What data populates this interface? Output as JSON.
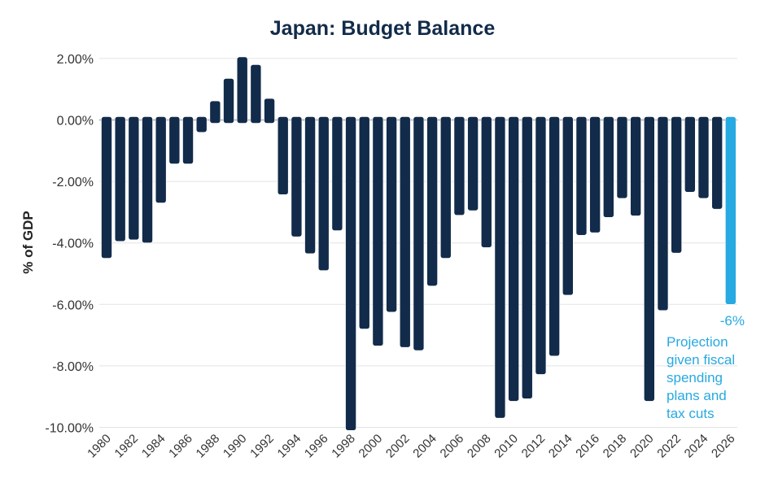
{
  "chart_data": {
    "type": "bar",
    "title": "Japan: Budget Balance",
    "ylabel": "% of GDP",
    "xlabel": "",
    "ylim": [
      -10,
      2
    ],
    "yticks": [
      2,
      0,
      -2,
      -4,
      -6,
      -8,
      -10
    ],
    "ytick_labels": [
      "2.00%",
      "0.00%",
      "-2.00%",
      "-4.00%",
      "-6.00%",
      "-8.00%",
      "-10.00%"
    ],
    "grid": true,
    "categories": [
      1980,
      1981,
      1982,
      1983,
      1984,
      1985,
      1986,
      1987,
      1988,
      1989,
      1990,
      1991,
      1992,
      1993,
      1994,
      1995,
      1996,
      1997,
      1998,
      1999,
      2000,
      2001,
      2002,
      2003,
      2004,
      2005,
      2006,
      2007,
      2008,
      2009,
      2010,
      2011,
      2012,
      2013,
      2014,
      2015,
      2016,
      2017,
      2018,
      2019,
      2020,
      2021,
      2022,
      2023,
      2024,
      2025,
      2026
    ],
    "xtick_labels": [
      "1980",
      "1982",
      "1984",
      "1986",
      "1988",
      "1990",
      "1992",
      "1994",
      "1996",
      "1998",
      "2000",
      "2002",
      "2004",
      "2006",
      "2008",
      "2010",
      "2012",
      "2014",
      "2016",
      "2018",
      "2020",
      "2022",
      "2024",
      "2026"
    ],
    "values": [
      -4.5,
      -3.95,
      -3.9,
      -4.0,
      -2.7,
      -1.43,
      -1.43,
      -0.4,
      0.62,
      1.35,
      2.05,
      1.8,
      0.7,
      -2.43,
      -3.8,
      -4.35,
      -4.9,
      -3.6,
      -10.1,
      -6.8,
      -7.35,
      -6.25,
      -7.4,
      -7.5,
      -5.4,
      -4.5,
      -3.1,
      -2.95,
      -4.15,
      -9.7,
      -9.15,
      -9.07,
      -8.28,
      -7.68,
      -5.7,
      -3.75,
      -3.67,
      -3.17,
      -2.55,
      -3.12,
      -9.15,
      -6.2,
      -4.33,
      -2.35,
      -2.55,
      -2.9,
      -6.0
    ],
    "projection_index": 46,
    "colors": {
      "actual": "#122b4a",
      "projection": "#27a9e1",
      "grid": "#e3e3e3",
      "title": "#122b4a"
    },
    "annotation": {
      "value_label": "-6%",
      "lines": [
        "Projection",
        "given fiscal",
        "spending",
        "plans and",
        "tax cuts"
      ]
    }
  }
}
